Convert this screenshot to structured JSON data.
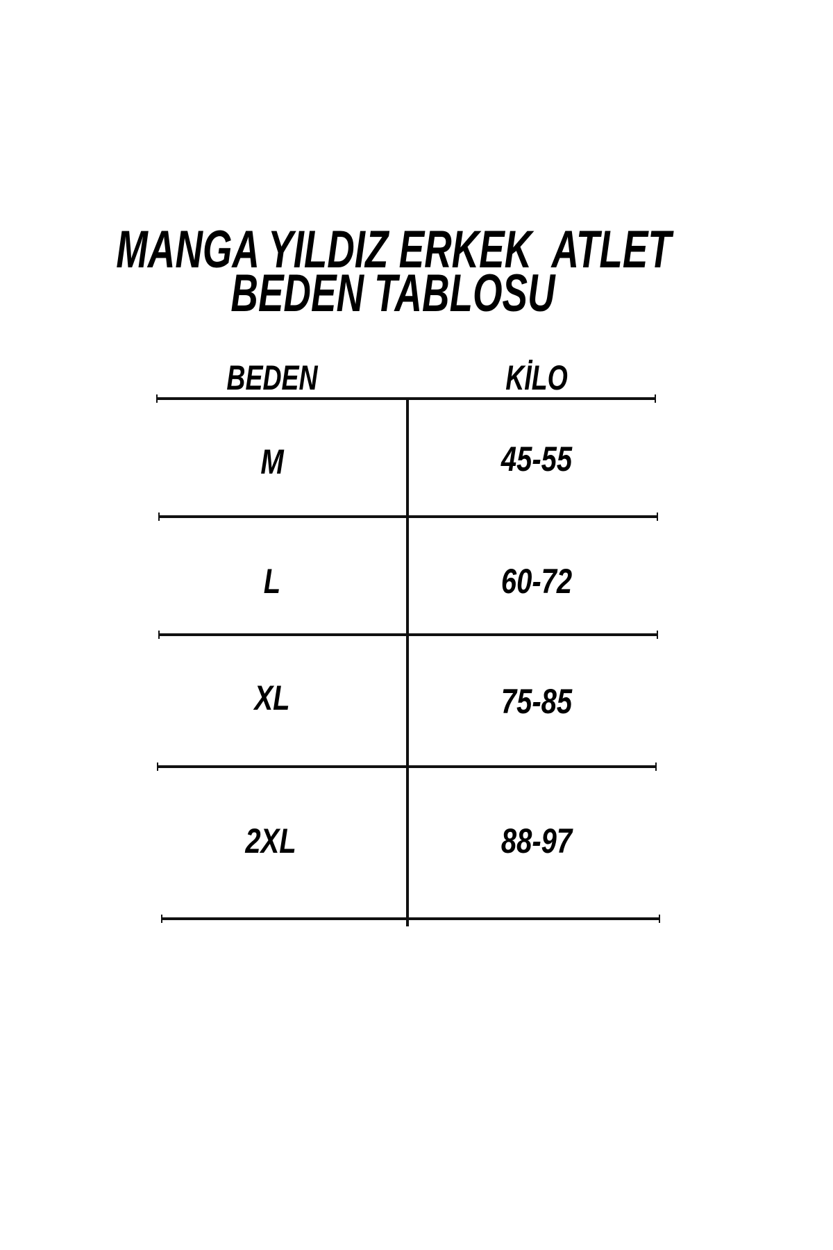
{
  "title": {
    "line1": "MANGA YILDIZ ERKEK  ATLET",
    "line2": "BEDEN TABLOSU"
  },
  "table": {
    "headers": [
      "BEDEN",
      "KİLO"
    ],
    "rows": [
      {
        "size": "M",
        "weight": "45-55"
      },
      {
        "size": "L",
        "weight": "60-72"
      },
      {
        "size": "XL",
        "weight": "75-85"
      },
      {
        "size": "2XL",
        "weight": "88-97"
      }
    ]
  }
}
